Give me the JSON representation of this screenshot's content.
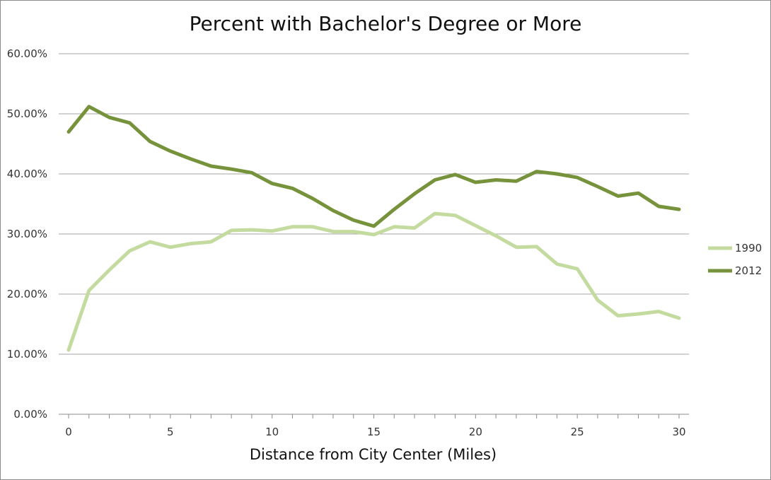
{
  "chart_data": {
    "type": "line",
    "title": "Percent with Bachelor's Degree or More",
    "xlabel": "Distance from City Center (Miles)",
    "ylabel": "",
    "xlim": [
      0,
      30
    ],
    "ylim": [
      0,
      60
    ],
    "y_ticks": [
      "0.00%",
      "10.00%",
      "20.00%",
      "30.00%",
      "40.00%",
      "50.00%",
      "60.00%"
    ],
    "x_tick_labels": [
      "0",
      "5",
      "10",
      "15",
      "20",
      "25",
      "30"
    ],
    "grid": "horizontal",
    "legend_position": "right",
    "x": [
      0,
      1,
      2,
      3,
      4,
      5,
      6,
      7,
      8,
      9,
      10,
      11,
      12,
      13,
      14,
      15,
      16,
      17,
      18,
      19,
      20,
      21,
      22,
      23,
      24,
      25,
      26,
      27,
      28,
      29,
      30
    ],
    "series": [
      {
        "name": "1990",
        "color": "#c4dba0",
        "values": [
          10.7,
          20.6,
          24.0,
          27.2,
          28.7,
          27.8,
          28.4,
          28.7,
          30.6,
          30.7,
          30.5,
          31.2,
          31.2,
          30.4,
          30.4,
          29.9,
          31.2,
          31.0,
          33.4,
          33.1,
          31.4,
          29.7,
          27.8,
          27.9,
          25.0,
          24.2,
          19.0,
          16.4,
          16.7,
          17.1,
          16.0
        ]
      },
      {
        "name": "2012",
        "color": "#76933c",
        "values": [
          47.0,
          51.2,
          49.4,
          48.5,
          45.4,
          43.8,
          42.5,
          41.3,
          40.8,
          40.2,
          38.4,
          37.6,
          35.9,
          33.9,
          32.3,
          31.3,
          34.1,
          36.7,
          39.0,
          39.9,
          38.6,
          39.0,
          38.8,
          40.4,
          40.0,
          39.4,
          37.9,
          36.3,
          36.8,
          34.6,
          34.1
        ]
      }
    ]
  }
}
